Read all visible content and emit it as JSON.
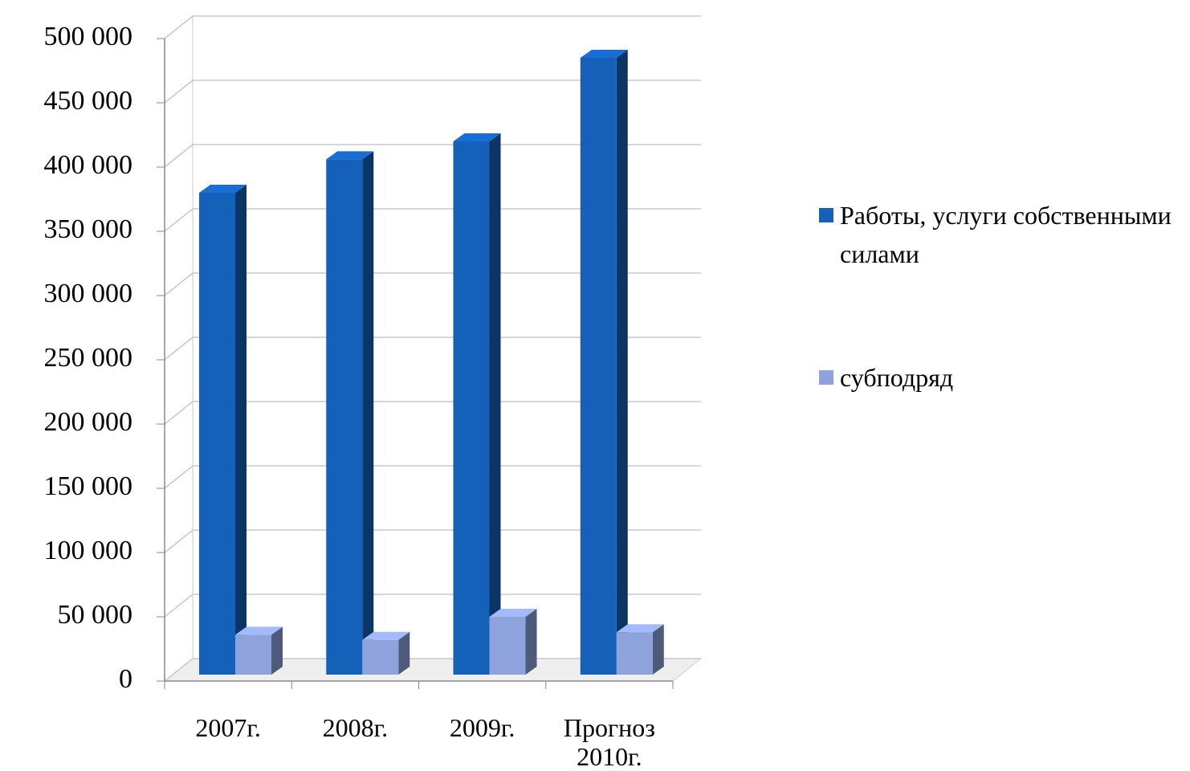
{
  "chart_data": {
    "type": "bar3d",
    "categories": [
      "2007г.",
      "2008г.",
      "2009г.",
      "Прогноз 2010г."
    ],
    "series": [
      {
        "name": "Работы, услуги собственными силами",
        "color": "#1560b8",
        "values": [
          375000,
          401000,
          415000,
          480000
        ]
      },
      {
        "name": "субподряд",
        "color": "#8ea3dc",
        "values": [
          31000,
          27000,
          45000,
          33000
        ]
      }
    ],
    "ylim": [
      0,
      500000
    ],
    "yticks": [
      {
        "value": 0,
        "label": "0"
      },
      {
        "value": 50000,
        "label": "50 000"
      },
      {
        "value": 100000,
        "label": "100 000"
      },
      {
        "value": 150000,
        "label": "150 000"
      },
      {
        "value": 200000,
        "label": "200 000"
      },
      {
        "value": 250000,
        "label": "250 000"
      },
      {
        "value": 300000,
        "label": "300 000"
      },
      {
        "value": 350000,
        "label": "350 000"
      },
      {
        "value": 400000,
        "label": "400 000"
      },
      {
        "value": 450000,
        "label": "450 000"
      },
      {
        "value": 500000,
        "label": "500 000"
      }
    ],
    "grid": true,
    "legend": "right"
  }
}
